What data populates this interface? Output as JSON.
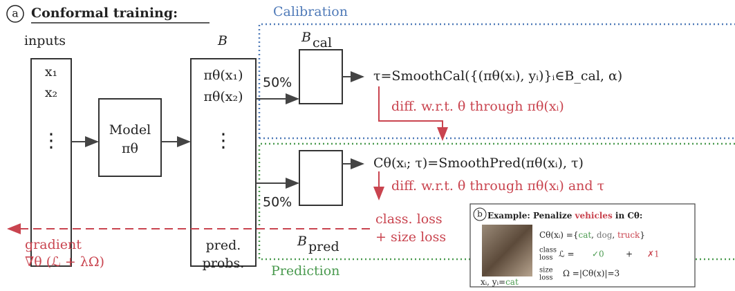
{
  "header": {
    "label": "a",
    "title": "Conformal training:"
  },
  "regions": {
    "calibration": "Calibration",
    "prediction": "Prediction"
  },
  "inputs": {
    "label": "inputs",
    "items": [
      "x₁",
      "x₂"
    ],
    "dots": "⋮"
  },
  "model": {
    "label": "Model",
    "symbol": "πθ"
  },
  "batch": {
    "label": "B",
    "items": [
      "πθ(x₁)",
      "πθ(x₂)"
    ],
    "dots": "⋮",
    "caption": [
      "pred.",
      "probs."
    ]
  },
  "split": [
    "50%",
    "50%"
  ],
  "calibration": {
    "set": "B",
    "sub": "cal",
    "formula": "τ=SmoothCal({(πθ(xᵢ), yᵢ)}ᵢ∈B_cal, α)",
    "note": "diff. w.r.t. θ through πθ(xᵢ)"
  },
  "prediction": {
    "set": "B",
    "sub": "pred",
    "formula": "Cθ(xᵢ; τ)=SmoothPred(πθ(xᵢ), τ)",
    "note": "diff. w.r.t. θ through πθ(xᵢ) and τ",
    "loss": [
      "class. loss",
      "+ size loss"
    ]
  },
  "gradient": [
    "gradient",
    "∇θ (ℒ + λΩ)"
  ],
  "example": {
    "label": "b",
    "title": [
      "Example: Penalize ",
      "vehicles",
      " in Cθ:"
    ],
    "set": [
      "Cθ(xᵢ) ={",
      "cat",
      ", ",
      "dog",
      ", ",
      "truck",
      "}"
    ],
    "class_loss": [
      "class",
      "loss",
      "ℒ =",
      "✓0",
      "+",
      "✗1"
    ],
    "size_loss": [
      "size",
      "loss",
      "Ω =|Cθ(x)|=3"
    ],
    "caption": [
      "xᵢ, yᵢ=",
      "cat"
    ]
  }
}
